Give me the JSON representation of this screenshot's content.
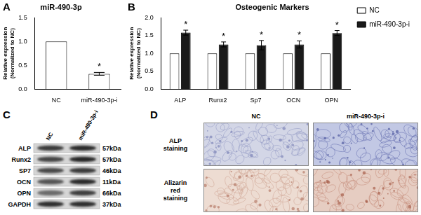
{
  "chart_data": [
    {
      "type": "bar",
      "panel": "A",
      "title": "miR-490-3p",
      "y_label": [
        "Relative expression",
        "(Normalized to NC)"
      ],
      "categories": [
        "NC",
        "miR-490-3p-i"
      ],
      "values": [
        1.0,
        0.32
      ],
      "errors": [
        null,
        0.03
      ],
      "color": "#ffffff",
      "ylim": [
        0,
        1.5
      ],
      "yticks": [
        {
          "value": 0,
          "label": "0.0"
        },
        0.5,
        {
          "value": 1,
          "label": "1.0"
        },
        {
          "value": 1.5,
          "label": "1.5"
        }
      ],
      "grid": false,
      "annotations": [
        {
          "text": "*",
          "category": "miR-490-3p-i"
        }
      ]
    },
    {
      "type": "bar",
      "panel": "B",
      "title": "Osteogenic Markers",
      "y_label": [
        "Relative expression",
        "(Normalized to NC)"
      ],
      "categories": [
        "ALP",
        "Runx2",
        "Sp7",
        "OCN",
        "OPN"
      ],
      "series": [
        {
          "name": "NC",
          "color": "#ffffff",
          "values": [
            1,
            1,
            1,
            1,
            1
          ]
        },
        {
          "name": "miR-490-3p-i",
          "color": "#1a1a1a",
          "values": [
            1.58,
            1.25,
            1.23,
            1.25,
            1.57
          ],
          "errors": [
            0.07,
            0.07,
            0.13,
            0.1,
            0.07
          ]
        }
      ],
      "ylim": [
        0,
        2
      ],
      "yticks": [
        {
          "value": 0,
          "label": "0.0"
        },
        0.5,
        {
          "value": 1,
          "label": "1.0"
        },
        1.5,
        {
          "value": 2,
          "label": "2.0"
        }
      ],
      "grid": false,
      "legend": "right",
      "annotations": [
        {
          "text": "*",
          "category": "ALP",
          "series": "miR-490-3p-i"
        },
        {
          "text": "*",
          "category": "Runx2",
          "series": "miR-490-3p-i"
        },
        {
          "text": "*",
          "category": "Sp7",
          "series": "miR-490-3p-i"
        },
        {
          "text": "*",
          "category": "OCN",
          "series": "miR-490-3p-i"
        },
        {
          "text": "*",
          "category": "OPN",
          "series": "miR-490-3p-i"
        }
      ]
    }
  ],
  "western_blot": {
    "panel": "C",
    "columns": [
      "NC",
      "miR-490-3p-i"
    ],
    "rows": [
      {
        "label": "ALP",
        "size": "57kDa"
      },
      {
        "label": "Runx2",
        "size": "57kDa"
      },
      {
        "label": "SP7",
        "size": "46kDa"
      },
      {
        "label": "OCN",
        "size": "11kDa"
      },
      {
        "label": "OPN",
        "size": "66kDa"
      },
      {
        "label": "GAPDH",
        "size": "37kDa"
      }
    ]
  },
  "staining": {
    "panel": "D",
    "columns": [
      "NC",
      "miR-490-3p-i"
    ],
    "rows": [
      "ALP staining",
      "Alizarin red staining"
    ]
  }
}
